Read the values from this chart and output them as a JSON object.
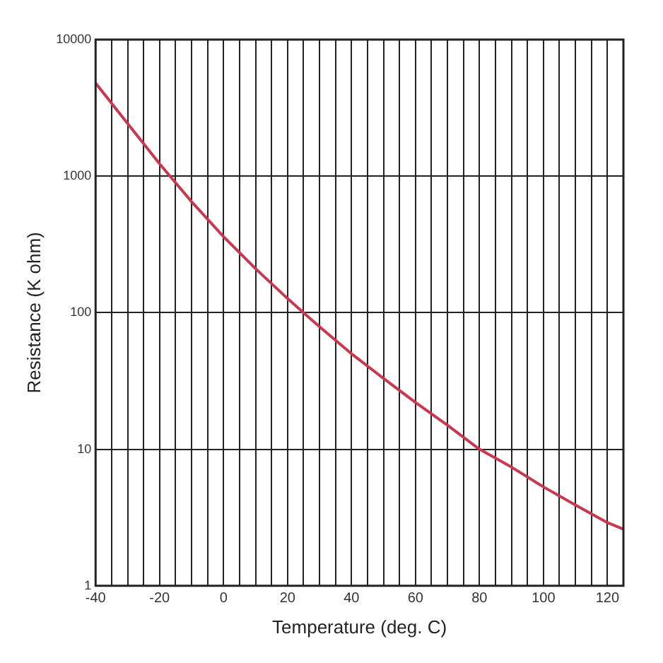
{
  "chart_data": {
    "type": "line",
    "xlabel": "Temperature (deg. C)",
    "ylabel": "Resistance (K ohm)",
    "log": "y",
    "grid": true,
    "marker": "none",
    "line_style": "solid",
    "x": [
      -40,
      -30,
      -20,
      -10,
      0,
      10,
      20,
      25,
      30,
      40,
      50,
      60,
      70,
      80,
      90,
      100,
      110,
      120,
      125
    ],
    "series": [
      {
        "color": "#c8384f",
        "values": [
          4800,
          2430,
          1230,
          650,
          360,
          210,
          127,
          100,
          79,
          50,
          33,
          22,
          15,
          10,
          7.4,
          5.3,
          3.9,
          2.9,
          2.6
        ]
      }
    ],
    "xlim": [
      -40,
      125
    ],
    "xticks": [
      -40,
      {
        "value": -35,
        "label": null
      },
      {
        "value": -30,
        "label": null
      },
      {
        "value": -25,
        "label": null
      },
      -20,
      {
        "value": -15,
        "label": null
      },
      {
        "value": -10,
        "label": null
      },
      {
        "value": -5,
        "label": null
      },
      0,
      {
        "value": 5,
        "label": null
      },
      {
        "value": 10,
        "label": null
      },
      {
        "value": 15,
        "label": null
      },
      20,
      {
        "value": 25,
        "label": null
      },
      {
        "value": 30,
        "label": null
      },
      {
        "value": 35,
        "label": null
      },
      40,
      {
        "value": 45,
        "label": null
      },
      {
        "value": 50,
        "label": null
      },
      {
        "value": 55,
        "label": null
      },
      60,
      {
        "value": 65,
        "label": null
      },
      {
        "value": 70,
        "label": null
      },
      {
        "value": 75,
        "label": null
      },
      80,
      {
        "value": 85,
        "label": null
      },
      {
        "value": 90,
        "label": null
      },
      {
        "value": 95,
        "label": null
      },
      100,
      {
        "value": 105,
        "label": null
      },
      {
        "value": 110,
        "label": null
      },
      {
        "value": 115,
        "label": null
      },
      120,
      {
        "value": 125,
        "label": null
      }
    ],
    "ylim": [
      1,
      10000
    ],
    "yticks": [
      1,
      10,
      100,
      1000,
      10000
    ]
  }
}
